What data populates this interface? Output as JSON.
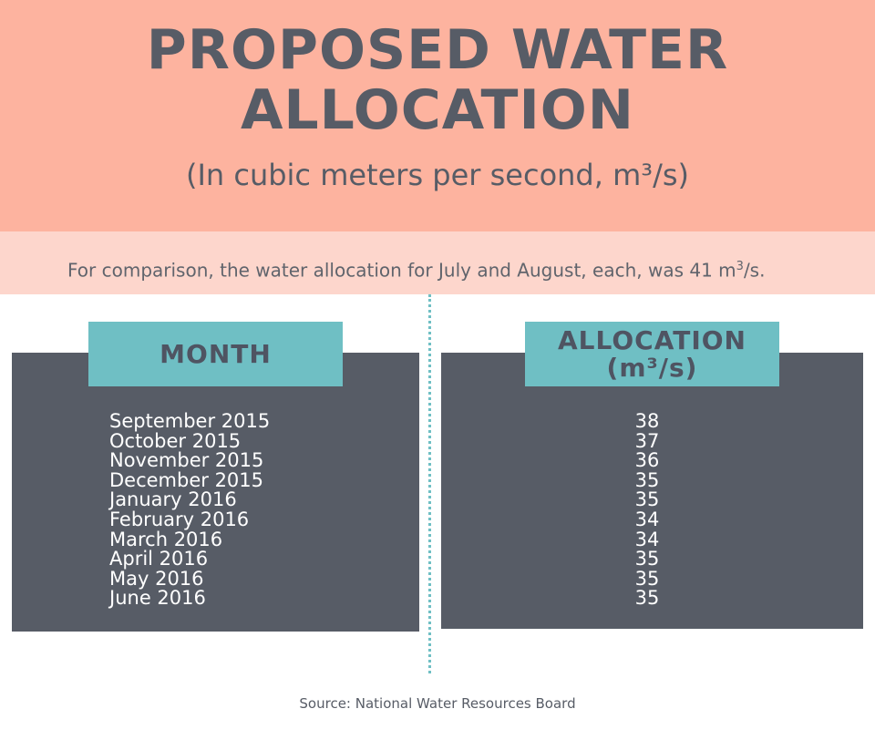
{
  "header": {
    "title_line1": "PROPOSED WATER",
    "title_line2": "ALLOCATION",
    "subtitle": "(In cubic meters per second, m³/s)"
  },
  "comparison": {
    "text_before": "For comparison, the water allocation for July and August, each, was 41 m",
    "superscript": "3",
    "text_after": "/s."
  },
  "chart_data": {
    "type": "table",
    "columns": [
      "MONTH",
      "ALLOCATION (m³/s)"
    ],
    "column_labels": {
      "month": "MONTH",
      "allocation_line1": "ALLOCATION",
      "allocation_line2": "(m³/s)"
    },
    "categories": [
      "September 2015",
      "October 2015",
      "November 2015",
      "December 2015",
      "January 2016",
      "February 2016",
      "March 2016",
      "April 2016",
      "May 2016",
      "June 2016"
    ],
    "values": [
      38,
      37,
      36,
      35,
      35,
      34,
      34,
      35,
      35,
      35
    ]
  },
  "source": "Source: National Water Resources Board",
  "colors": {
    "header_bg": "#fdb39f",
    "band_bg": "#fdd6cc",
    "panel_bg": "#575c66",
    "accent": "#6fbfc4",
    "text_dark": "#575c66"
  }
}
